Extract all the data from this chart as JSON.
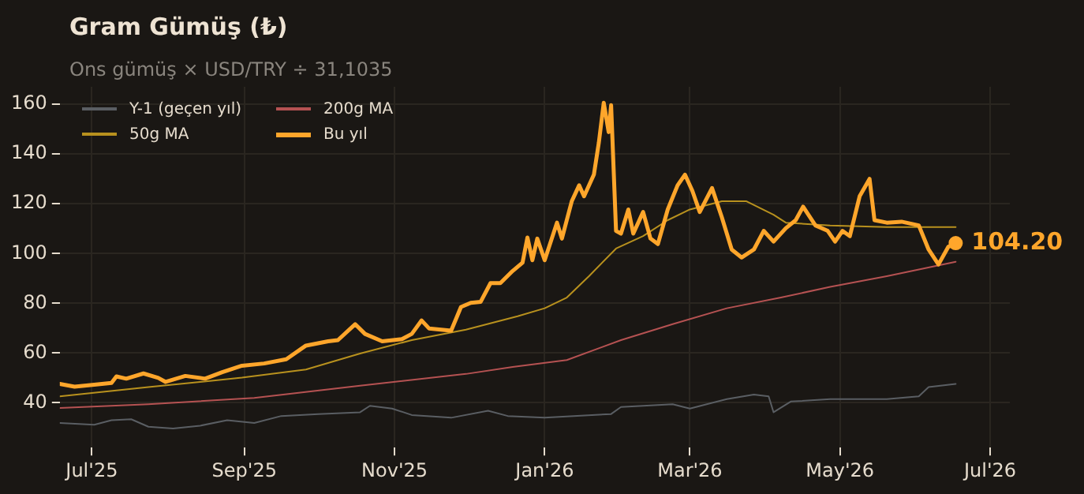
{
  "chart_data": {
    "type": "line",
    "title": "Gram Gümüş (₺)",
    "subtitle": "Ons gümüş × USD/TRY ÷ 31,1035",
    "xlim": [
      "2025-06-18",
      "2026-07-09"
    ],
    "xticks": [
      {
        "value": "2025-07-01",
        "label": "Jul'25"
      },
      {
        "value": "2025-09-01",
        "label": "Sep'25"
      },
      {
        "value": "2025-11-01",
        "label": "Nov'25"
      },
      {
        "value": "2026-01-01",
        "label": "Jan'26"
      },
      {
        "value": "2026-03-01",
        "label": "Mar'26"
      },
      {
        "value": "2026-05-01",
        "label": "May'26"
      },
      {
        "value": "2026-07-01",
        "label": "Jul'26"
      }
    ],
    "ylim": [
      22,
      167
    ],
    "yticks": [
      40,
      60,
      80,
      100,
      120,
      140,
      160
    ],
    "grid": true,
    "legend": "top left",
    "marker": "none",
    "annotations": [
      {
        "text": "104.20",
        "x": "2026-06-17",
        "y": 104.2
      }
    ],
    "series": [
      {
        "name": "Y-1 (geçen yıl)",
        "color": "#5a5e63",
        "x": [
          "2025-06-18",
          "2025-07-02",
          "2025-07-09",
          "2025-07-17",
          "2025-07-24",
          "2025-08-03",
          "2025-08-14",
          "2025-08-25",
          "2025-09-05",
          "2025-09-16",
          "2025-10-01",
          "2025-10-18",
          "2025-10-22",
          "2025-10-31",
          "2025-11-08",
          "2025-11-24",
          "2025-12-09",
          "2025-12-17",
          "2026-01-01",
          "2026-01-28",
          "2026-02-01",
          "2026-02-22",
          "2026-03-01",
          "2026-03-16",
          "2026-03-27",
          "2026-04-02",
          "2026-04-04",
          "2026-04-11",
          "2026-04-27",
          "2026-05-20",
          "2026-06-02",
          "2026-06-06",
          "2026-06-17"
        ],
        "values": [
          31.9,
          31.2,
          33,
          33.4,
          30.4,
          29.7,
          30.8,
          33,
          31.9,
          34.7,
          35.5,
          36.2,
          38.8,
          37.7,
          35.1,
          34,
          36.8,
          34.7,
          34,
          35.5,
          38.3,
          39.4,
          37.7,
          41.5,
          43.3,
          42.6,
          36.2,
          40.5,
          41.5,
          41.5,
          42.6,
          46.3,
          47.6
        ]
      },
      {
        "name": "50g MA",
        "color": "#b8911e",
        "x": [
          "2025-06-18",
          "2025-07-24",
          "2025-08-31",
          "2025-09-26",
          "2025-10-18",
          "2025-11-08",
          "2025-11-30",
          "2025-12-21",
          "2026-01-01",
          "2026-01-10",
          "2026-01-19",
          "2026-01-30",
          "2026-02-10",
          "2026-02-20",
          "2026-03-01",
          "2026-03-14",
          "2026-03-24",
          "2026-04-04",
          "2026-04-09",
          "2026-04-27",
          "2026-05-20",
          "2026-06-17"
        ],
        "values": [
          42.6,
          46.3,
          50.1,
          53.4,
          59.8,
          65.2,
          69.4,
          74.8,
          78,
          82.3,
          90.9,
          102,
          107,
          113.4,
          117.7,
          121,
          121,
          115.6,
          112.4,
          111.3,
          110.6,
          110.6
        ]
      },
      {
        "name": "200g MA",
        "color": "#b55252",
        "x": [
          "2025-06-18",
          "2025-07-24",
          "2025-09-05",
          "2025-10-18",
          "2025-11-30",
          "2025-12-19",
          "2026-01-10",
          "2026-02-01",
          "2026-02-22",
          "2026-03-16",
          "2026-04-07",
          "2026-04-27",
          "2026-05-20",
          "2026-06-17"
        ],
        "values": [
          37.9,
          39.4,
          42,
          46.9,
          51.6,
          54.4,
          57.2,
          65.2,
          71.6,
          78,
          82.3,
          86.6,
          90.9,
          96.7
        ]
      },
      {
        "name": "Bu yıl",
        "color": "#ffa62b",
        "x": [
          "2025-06-18",
          "2025-06-24",
          "2025-07-02",
          "2025-07-09",
          "2025-07-11",
          "2025-07-15",
          "2025-07-22",
          "2025-07-28",
          "2025-07-31",
          "2025-08-08",
          "2025-08-16",
          "2025-08-23",
          "2025-08-31",
          "2025-09-09",
          "2025-09-18",
          "2025-09-26",
          "2025-10-05",
          "2025-10-09",
          "2025-10-16",
          "2025-10-20",
          "2025-10-27",
          "2025-11-04",
          "2025-11-08",
          "2025-11-12",
          "2025-11-15",
          "2025-11-24",
          "2025-11-28",
          "2025-12-02",
          "2025-12-06",
          "2025-12-10",
          "2025-12-14",
          "2025-12-19",
          "2025-12-23",
          "2025-12-25",
          "2025-12-27",
          "2025-12-29",
          "2026-01-01",
          "2026-01-06",
          "2026-01-08",
          "2026-01-12",
          "2026-01-15",
          "2026-01-17",
          "2026-01-21",
          "2026-01-23",
          "2026-01-25",
          "2026-01-27",
          "2026-01-28",
          "2026-01-30",
          "2026-02-01",
          "2026-02-04",
          "2026-02-06",
          "2026-02-10",
          "2026-02-13",
          "2026-02-16",
          "2026-02-20",
          "2026-02-24",
          "2026-02-27",
          "2026-03-02",
          "2026-03-05",
          "2026-03-10",
          "2026-03-14",
          "2026-03-18",
          "2026-03-22",
          "2026-03-27",
          "2026-03-31",
          "2026-04-04",
          "2026-04-09",
          "2026-04-13",
          "2026-04-16",
          "2026-04-21",
          "2026-04-26",
          "2026-04-29",
          "2026-05-02",
          "2026-05-05",
          "2026-05-09",
          "2026-05-13",
          "2026-05-15",
          "2026-05-20",
          "2026-05-26",
          "2026-06-02",
          "2026-06-06",
          "2026-06-10",
          "2026-06-14",
          "2026-06-17"
        ],
        "values": [
          47.6,
          46.5,
          47.3,
          48,
          50.6,
          49.7,
          51.8,
          50,
          48.4,
          50.8,
          49.7,
          52.3,
          54.9,
          55.8,
          57.5,
          63,
          64.7,
          65.2,
          71.6,
          67.7,
          64.7,
          65.6,
          67.7,
          73.1,
          69.9,
          69,
          78.5,
          80.2,
          80.6,
          88.1,
          88.1,
          93,
          96.3,
          106.4,
          97.3,
          106,
          97.3,
          112.4,
          106,
          121,
          127.4,
          123,
          131.7,
          144.5,
          160.6,
          148.8,
          159.6,
          109.1,
          108,
          117.7,
          108,
          116.7,
          106,
          103.8,
          117.7,
          127.4,
          131.7,
          125.2,
          116.7,
          126.3,
          114.5,
          101.6,
          98.4,
          101.6,
          109.1,
          104.8,
          110.2,
          113.4,
          118.8,
          111.3,
          109.1,
          104.8,
          109.1,
          107,
          123.1,
          130,
          113.4,
          112.4,
          112.8,
          111.3,
          101.6,
          95.6,
          102.7,
          104.2
        ]
      }
    ]
  }
}
